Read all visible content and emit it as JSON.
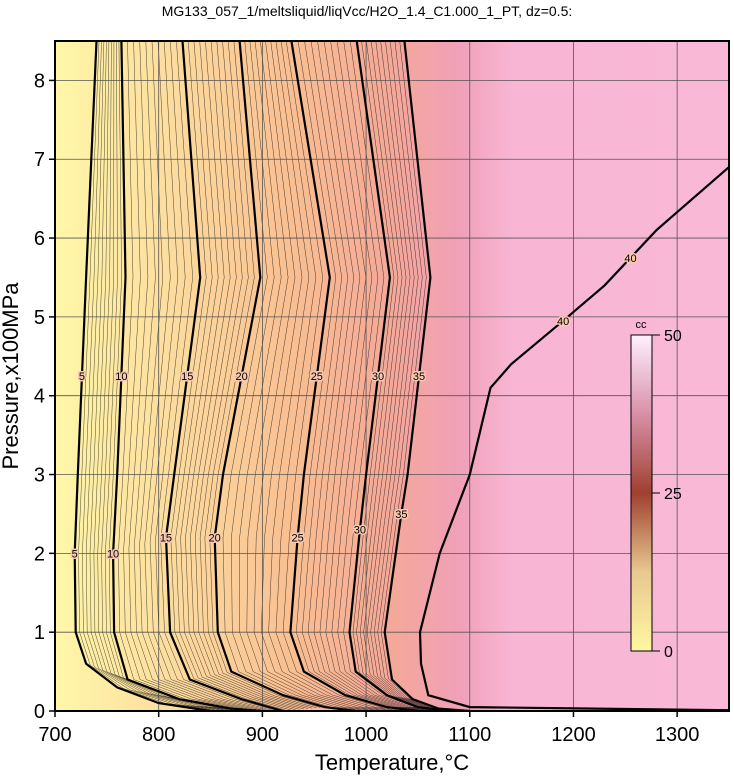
{
  "chart_data": {
    "type": "contour",
    "title": "MG133_057_1/meltsliquid/liqVcc/H2O_1.4_C1.000_1_PT, dz=0.5:",
    "x_label": "Temperature,°C",
    "y_label": "Pressure,x100MPa",
    "xlim": [
      700,
      1350
    ],
    "ylim": [
      0,
      8.5
    ],
    "xticks": [
      700,
      800,
      900,
      1000,
      1100,
      1200,
      1300
    ],
    "yticks": [
      0,
      1,
      2,
      3,
      4,
      5,
      6,
      7,
      8
    ],
    "grid": true,
    "contours": [
      {
        "level": 5,
        "x": [
          740,
          730,
          722,
          719,
          720,
          730,
          760,
          800,
          850
        ],
        "y": [
          8.5,
          5.5,
          3,
          2,
          1,
          0.6,
          0.3,
          0.1,
          0
        ]
      },
      {
        "level": 10,
        "x": [
          764,
          768,
          760,
          756,
          757,
          770,
          820,
          870,
          900
        ],
        "y": [
          8.5,
          5.5,
          3,
          2,
          1,
          0.4,
          0.15,
          0.03,
          0
        ]
      },
      {
        "level": 15,
        "x": [
          823,
          840,
          815,
          807,
          811,
          830,
          880,
          920
        ],
        "y": [
          8.5,
          5.5,
          3,
          2.2,
          1,
          0.4,
          0.15,
          0
        ]
      },
      {
        "level": 20,
        "x": [
          878,
          898,
          862,
          854,
          857,
          870,
          920,
          960,
          990
        ],
        "y": [
          8.5,
          5.5,
          3,
          2.2,
          1,
          0.5,
          0.2,
          0.05,
          0
        ]
      },
      {
        "level": 25,
        "x": [
          928,
          965,
          940,
          934,
          927,
          940,
          980,
          1020,
          1050
        ],
        "y": [
          8.5,
          5.5,
          3,
          2.2,
          1,
          0.5,
          0.2,
          0.05,
          0
        ]
      },
      {
        "level": 30,
        "x": [
          991,
          1023,
          1000,
          994,
          984,
          990,
          1020,
          1050,
          1080
        ],
        "y": [
          8.5,
          5.5,
          3,
          2.3,
          1,
          0.5,
          0.2,
          0.05,
          0
        ]
      },
      {
        "level": 35,
        "x": [
          1037,
          1062,
          1040,
          1034,
          1018,
          1025,
          1045,
          1070,
          1100
        ],
        "y": [
          8.5,
          5.5,
          3,
          2.5,
          1,
          0.4,
          0.15,
          0.03,
          0
        ]
      },
      {
        "level": 40,
        "x": [
          1350,
          1280,
          1230,
          1190,
          1140,
          1120,
          1100,
          1071,
          1052,
          1053,
          1060,
          1100,
          1350
        ],
        "y": [
          6.9,
          6.1,
          5.4,
          4.95,
          4.4,
          4.1,
          3,
          2,
          1,
          0.6,
          0.2,
          0.05,
          0.01
        ]
      }
    ],
    "colorbar": {
      "label": "cc",
      "lim": [
        0,
        50
      ],
      "ticks": [
        0,
        25,
        50
      ]
    }
  }
}
